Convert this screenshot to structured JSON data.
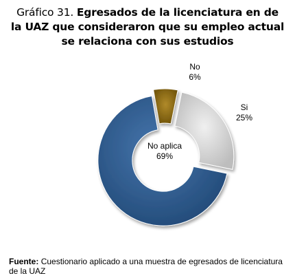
{
  "title": {
    "prefix": "Gráfico 31.",
    "main": "Egresados de la licenciatura en de la UAZ que consideraron que su empleo actual se relaciona con sus estudios"
  },
  "chart_data": {
    "type": "pie",
    "title": "Gráfico 31. Egresados de la licenciatura en de la UAZ que consideraron que su empleo actual se relaciona con sus estudios",
    "donut": true,
    "exploded": true,
    "legend": "none",
    "slices": [
      {
        "label": "No",
        "value": 6,
        "value_label": "6%",
        "color": "#8a6a12"
      },
      {
        "label": "Si",
        "value": 25,
        "value_label": "25%",
        "color": "#d3d3d3"
      },
      {
        "label": "No aplica",
        "value": 69,
        "value_label": "69%",
        "color": "#2f5a8c"
      }
    ]
  },
  "source": {
    "label": "Fuente:",
    "text": "Cuestionario aplicado a una muestra de egresados de licenciatura de la UAZ"
  }
}
